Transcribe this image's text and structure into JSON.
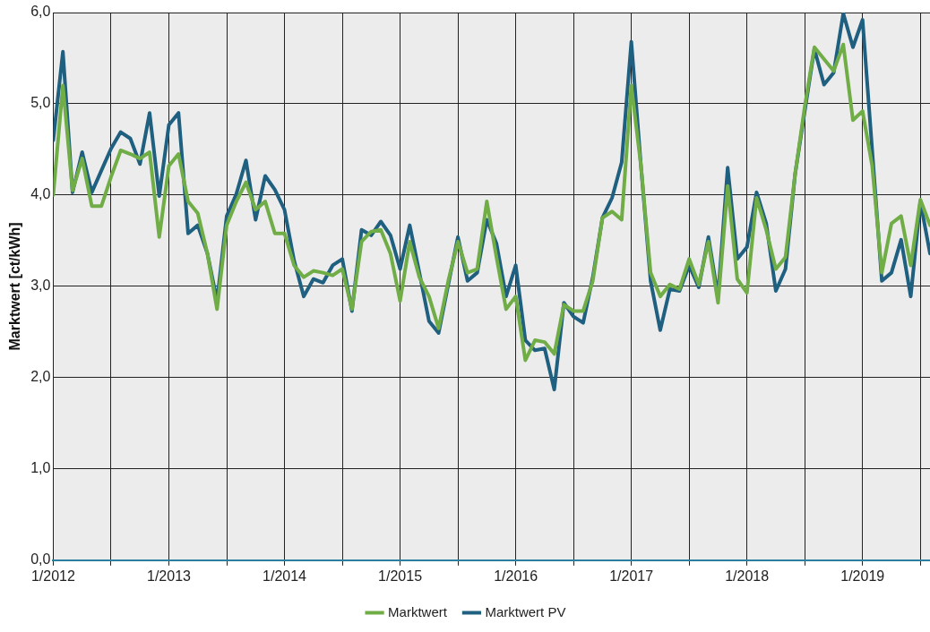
{
  "chart_data": {
    "type": "line",
    "ylabel": "Marktwert [ct/kWh]",
    "x": [
      "2012-01",
      "2012-02",
      "2012-03",
      "2012-04",
      "2012-05",
      "2012-06",
      "2012-07",
      "2012-08",
      "2012-09",
      "2012-10",
      "2012-11",
      "2012-12",
      "2013-01",
      "2013-02",
      "2013-03",
      "2013-04",
      "2013-05",
      "2013-06",
      "2013-07",
      "2013-08",
      "2013-09",
      "2013-10",
      "2013-11",
      "2013-12",
      "2014-01",
      "2014-02",
      "2014-03",
      "2014-04",
      "2014-05",
      "2014-06",
      "2014-07",
      "2014-08",
      "2014-09",
      "2014-10",
      "2014-11",
      "2014-12",
      "2015-01",
      "2015-02",
      "2015-03",
      "2015-04",
      "2015-05",
      "2015-06",
      "2015-07",
      "2015-08",
      "2015-09",
      "2015-10",
      "2015-11",
      "2015-12",
      "2016-01",
      "2016-02",
      "2016-03",
      "2016-04",
      "2016-05",
      "2016-06",
      "2016-07",
      "2016-08",
      "2016-09",
      "2016-10",
      "2016-11",
      "2016-12",
      "2017-01",
      "2017-02",
      "2017-03",
      "2017-04",
      "2017-05",
      "2017-06",
      "2017-07",
      "2017-08",
      "2017-09",
      "2017-10",
      "2017-11",
      "2017-12",
      "2018-01",
      "2018-02",
      "2018-03",
      "2018-04",
      "2018-05",
      "2018-06",
      "2018-07",
      "2018-08",
      "2018-09",
      "2018-10",
      "2018-11",
      "2018-12",
      "2019-01",
      "2019-02",
      "2019-03",
      "2019-04",
      "2019-05",
      "2019-06",
      "2019-07",
      "2019-08"
    ],
    "series": [
      {
        "name": "Marktwert",
        "color": "#70ad47",
        "values": [
          4.0,
          5.2,
          4.05,
          4.4,
          3.88,
          3.88,
          4.2,
          4.49,
          4.45,
          4.4,
          4.47,
          3.54,
          4.32,
          4.45,
          3.93,
          3.8,
          3.36,
          2.75,
          3.67,
          3.93,
          4.14,
          3.84,
          3.93,
          3.58,
          3.58,
          3.23,
          3.1,
          3.17,
          3.15,
          3.12,
          3.19,
          2.75,
          3.49,
          3.6,
          3.62,
          3.36,
          2.84,
          3.49,
          3.1,
          2.89,
          2.54,
          3.06,
          3.49,
          3.15,
          3.19,
          3.93,
          3.32,
          2.75,
          2.89,
          2.19,
          2.41,
          2.39,
          2.26,
          2.8,
          2.73,
          2.73,
          3.06,
          3.75,
          3.82,
          3.73,
          5.2,
          4.32,
          3.15,
          2.89,
          3.02,
          2.97,
          3.3,
          3.02,
          3.49,
          2.82,
          4.1,
          3.08,
          2.93,
          3.97,
          3.62,
          3.19,
          3.32,
          4.23,
          4.97,
          5.62,
          5.49,
          5.36,
          5.65,
          4.82,
          4.92,
          4.32,
          3.15,
          3.69,
          3.77,
          3.23,
          3.95,
          3.67
        ]
      },
      {
        "name": "Marktwert PV",
        "color": "#1f5f7f",
        "values": [
          4.6,
          5.57,
          4.03,
          4.47,
          4.03,
          4.27,
          4.51,
          4.69,
          4.62,
          4.34,
          4.9,
          3.99,
          4.77,
          4.9,
          3.58,
          3.67,
          3.36,
          2.84,
          3.77,
          4.01,
          4.38,
          3.73,
          4.21,
          4.06,
          3.84,
          3.28,
          2.89,
          3.08,
          3.04,
          3.23,
          3.3,
          2.73,
          3.62,
          3.56,
          3.71,
          3.56,
          3.19,
          3.67,
          3.15,
          2.62,
          2.49,
          3.02,
          3.54,
          3.06,
          3.15,
          3.73,
          3.47,
          2.89,
          3.23,
          2.41,
          2.3,
          2.32,
          1.87,
          2.82,
          2.67,
          2.6,
          3.1,
          3.75,
          3.97,
          4.36,
          5.68,
          4.32,
          3.06,
          2.52,
          2.97,
          2.95,
          3.23,
          2.99,
          3.54,
          2.89,
          4.3,
          3.3,
          3.43,
          4.03,
          3.69,
          2.95,
          3.19,
          4.23,
          4.92,
          5.6,
          5.21,
          5.34,
          5.99,
          5.62,
          5.92,
          4.49,
          3.06,
          3.15,
          3.51,
          2.89,
          3.93,
          3.36
        ]
      }
    ],
    "xlim": [
      "2012-01",
      "2019-08"
    ],
    "xticks": [
      {
        "value": "2012-01",
        "label": "1/2012"
      },
      {
        "value": "2012-07",
        "label": null
      },
      {
        "value": "2013-01",
        "label": "1/2013"
      },
      {
        "value": "2013-07",
        "label": null
      },
      {
        "value": "2014-01",
        "label": "1/2014"
      },
      {
        "value": "2014-07",
        "label": null
      },
      {
        "value": "2015-01",
        "label": "1/2015"
      },
      {
        "value": "2015-07",
        "label": null
      },
      {
        "value": "2016-01",
        "label": "1/2016"
      },
      {
        "value": "2016-07",
        "label": null
      },
      {
        "value": "2017-01",
        "label": "1/2017"
      },
      {
        "value": "2017-07",
        "label": null
      },
      {
        "value": "2018-01",
        "label": "1/2018"
      },
      {
        "value": "2018-07",
        "label": null
      },
      {
        "value": "2019-01",
        "label": "1/2019"
      },
      {
        "value": "2019-07",
        "label": null
      }
    ],
    "ylim": [
      0,
      6
    ],
    "yticks": [
      {
        "value": 0,
        "label": "0,0"
      },
      {
        "value": 1,
        "label": "1,0"
      },
      {
        "value": 2,
        "label": "2,0"
      },
      {
        "value": 3,
        "label": "3,0"
      },
      {
        "value": 4,
        "label": "4,0"
      },
      {
        "value": 5,
        "label": "5,0"
      },
      {
        "value": 6,
        "label": "6,0"
      }
    ],
    "grid": true,
    "legend": "bottom",
    "marker": "none",
    "line_style": "solid"
  }
}
